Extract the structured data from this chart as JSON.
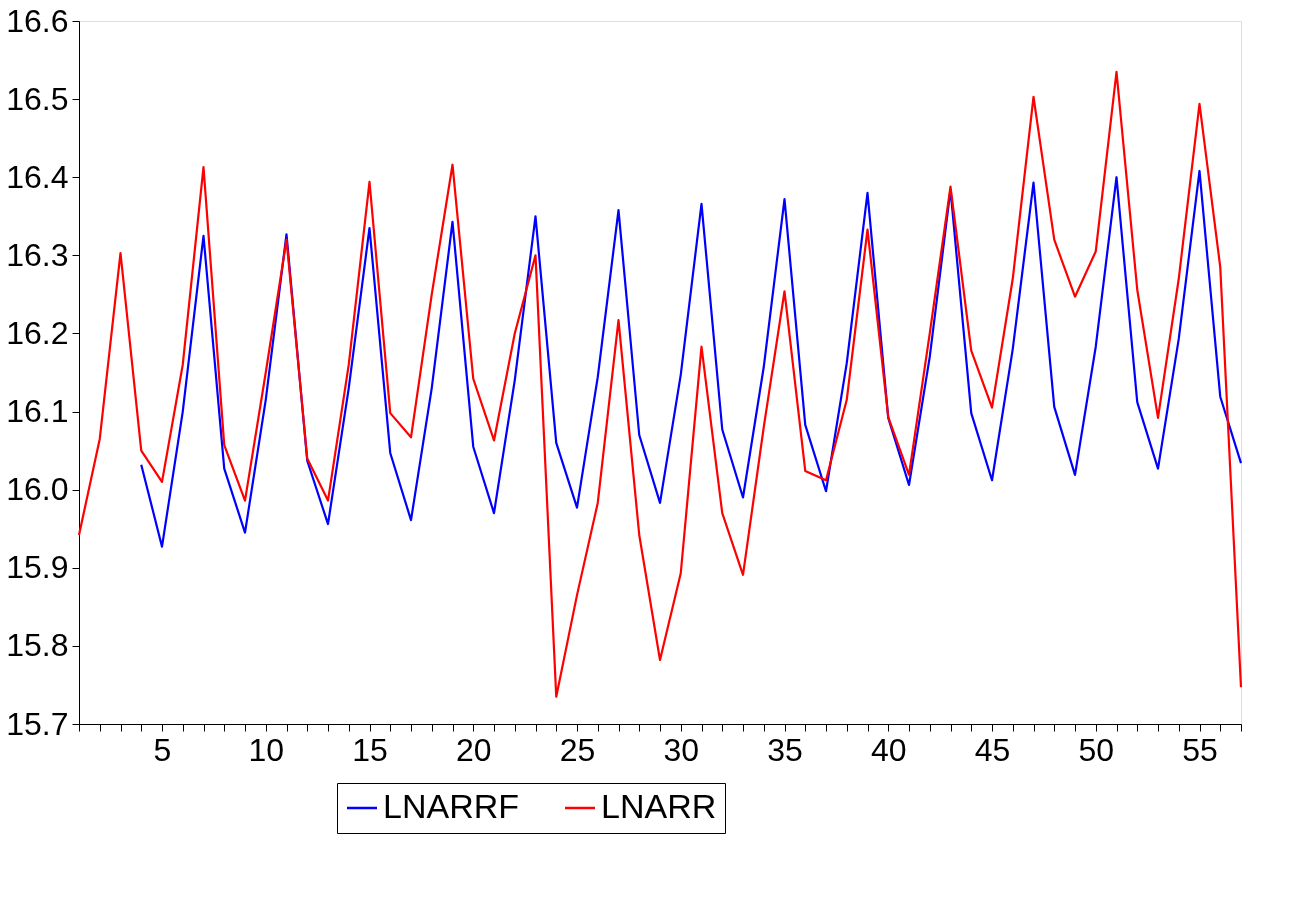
{
  "chart_data": {
    "type": "line",
    "x": [
      1,
      2,
      3,
      4,
      5,
      6,
      7,
      8,
      9,
      10,
      11,
      12,
      13,
      14,
      15,
      16,
      17,
      18,
      19,
      20,
      21,
      22,
      23,
      24,
      25,
      26,
      27,
      28,
      29,
      30,
      31,
      32,
      33,
      34,
      35,
      36,
      37,
      38,
      39,
      40,
      41,
      42,
      43,
      44,
      45,
      46,
      47,
      48,
      49,
      50,
      51,
      52,
      53,
      54,
      55,
      56,
      57
    ],
    "series": [
      {
        "name": "LNARRF",
        "color": "#0000ff",
        "values": [
          null,
          null,
          null,
          16.032,
          15.927,
          16.1,
          16.325,
          16.027,
          15.945,
          16.115,
          16.327,
          16.037,
          15.956,
          16.13,
          16.335,
          16.047,
          15.961,
          16.13,
          16.343,
          16.055,
          15.97,
          16.14,
          16.35,
          16.06,
          15.977,
          16.144,
          16.358,
          16.07,
          15.983,
          16.147,
          16.366,
          16.077,
          15.99,
          16.157,
          16.372,
          16.083,
          15.998,
          16.162,
          16.38,
          16.092,
          16.006,
          16.17,
          16.384,
          16.098,
          16.012,
          16.18,
          16.393,
          16.106,
          16.019,
          16.183,
          16.4,
          16.112,
          16.027,
          16.193,
          16.408,
          16.119,
          16.034
        ]
      },
      {
        "name": "LNARR",
        "color": "#ff0000",
        "values": [
          15.942,
          16.065,
          16.303,
          16.05,
          16.01,
          16.16,
          16.413,
          16.057,
          15.986,
          16.15,
          16.32,
          16.04,
          15.986,
          16.16,
          16.394,
          16.098,
          16.067,
          16.25,
          16.416,
          16.142,
          16.063,
          16.2,
          16.3,
          15.735,
          15.865,
          15.983,
          16.217,
          15.942,
          15.782,
          15.893,
          16.183,
          15.97,
          15.891,
          16.08,
          16.254,
          16.024,
          16.012,
          16.115,
          16.333,
          16.093,
          16.019,
          16.2,
          16.388,
          16.178,
          16.105,
          16.27,
          16.503,
          16.32,
          16.247,
          16.305,
          16.535,
          16.256,
          16.092,
          16.27,
          16.494,
          16.285,
          15.747
        ]
      }
    ],
    "xlim": [
      1,
      57
    ],
    "xticks": [
      {
        "value": 1,
        "label": null
      },
      {
        "value": 2,
        "label": null
      },
      {
        "value": 3,
        "label": null
      },
      {
        "value": 4,
        "label": null
      },
      5,
      {
        "value": 6,
        "label": null
      },
      {
        "value": 7,
        "label": null
      },
      {
        "value": 8,
        "label": null
      },
      {
        "value": 9,
        "label": null
      },
      10,
      {
        "value": 11,
        "label": null
      },
      {
        "value": 12,
        "label": null
      },
      {
        "value": 13,
        "label": null
      },
      {
        "value": 14,
        "label": null
      },
      15,
      {
        "value": 16,
        "label": null
      },
      {
        "value": 17,
        "label": null
      },
      {
        "value": 18,
        "label": null
      },
      {
        "value": 19,
        "label": null
      },
      20,
      {
        "value": 21,
        "label": null
      },
      {
        "value": 22,
        "label": null
      },
      {
        "value": 23,
        "label": null
      },
      {
        "value": 24,
        "label": null
      },
      25,
      {
        "value": 26,
        "label": null
      },
      {
        "value": 27,
        "label": null
      },
      {
        "value": 28,
        "label": null
      },
      {
        "value": 29,
        "label": null
      },
      30,
      {
        "value": 31,
        "label": null
      },
      {
        "value": 32,
        "label": null
      },
      {
        "value": 33,
        "label": null
      },
      {
        "value": 34,
        "label": null
      },
      35,
      {
        "value": 36,
        "label": null
      },
      {
        "value": 37,
        "label": null
      },
      {
        "value": 38,
        "label": null
      },
      {
        "value": 39,
        "label": null
      },
      40,
      {
        "value": 41,
        "label": null
      },
      {
        "value": 42,
        "label": null
      },
      {
        "value": 43,
        "label": null
      },
      {
        "value": 44,
        "label": null
      },
      45,
      {
        "value": 46,
        "label": null
      },
      {
        "value": 47,
        "label": null
      },
      {
        "value": 48,
        "label": null
      },
      {
        "value": 49,
        "label": null
      },
      50,
      {
        "value": 51,
        "label": null
      },
      {
        "value": 52,
        "label": null
      },
      {
        "value": 53,
        "label": null
      },
      {
        "value": 54,
        "label": null
      },
      55,
      {
        "value": 56,
        "label": null
      },
      {
        "value": 57,
        "label": null
      }
    ],
    "ylim": [
      15.7,
      16.6
    ],
    "yticks": [
      15.7,
      15.8,
      15.9,
      {
        "value": 16.0,
        "label": "16.0"
      },
      16.1,
      16.2,
      16.3,
      16.4,
      16.5,
      16.6
    ],
    "grid": false,
    "legend": "bottom",
    "line_style": "solid",
    "marker": "none"
  }
}
